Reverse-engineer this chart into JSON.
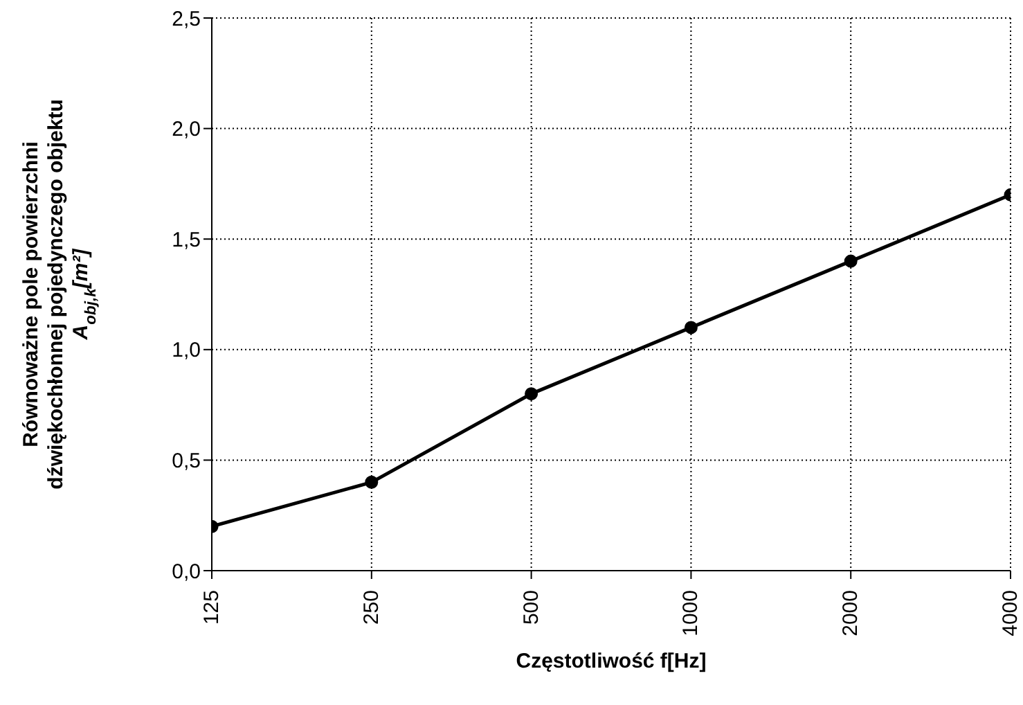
{
  "chart_data": {
    "type": "line",
    "xlabel": "Częstotliwość f[Hz]",
    "ylabel": "Równoważne pole  powierzchni\ndźwiękochłonnej pojedynczego objektu\nA$_{obj,k}$[m²]",
    "categories": [
      "125",
      "250",
      "500",
      "1000",
      "2000",
      "4000"
    ],
    "series": [
      {
        "color": "#000000",
        "values": [
          0.2,
          0.4,
          0.8,
          1.1,
          1.4,
          1.7
        ]
      }
    ],
    "ylim": [
      0,
      2.5
    ],
    "yticks": [
      {
        "value": 0,
        "label": "0,0"
      },
      {
        "value": 0.5,
        "label": "0,5"
      },
      {
        "value": 1,
        "label": "1,0"
      },
      {
        "value": 1.5,
        "label": "1,5"
      },
      {
        "value": 2,
        "label": "2,0"
      },
      {
        "value": 2.5,
        "label": "2,5"
      }
    ],
    "grid": true,
    "marker": "circle",
    "line_style": "solid",
    "legend": false
  }
}
